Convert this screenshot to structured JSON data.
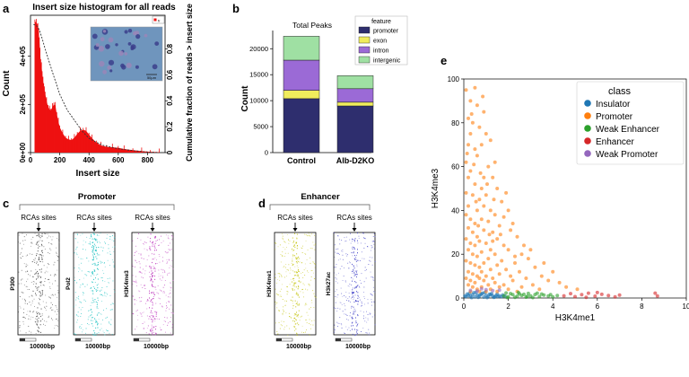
{
  "panel_labels": {
    "a": "a",
    "b": "b",
    "c": "c",
    "d": "d",
    "e": "e"
  },
  "colors": {
    "hist_fill": "#ee1111",
    "insulator": "#1f77b4",
    "promoter": "#ff7f0e",
    "weak_enhancer": "#2ca02c",
    "enhancer": "#d62728",
    "weak_promoter": "#9467bd",
    "bar_promoter": "#2e2e6e",
    "bar_exon": "#f0ec5c",
    "bar_intron": "#9b6ad6",
    "bar_intergenic": "#9fe0a3",
    "heat_p300": "#555555",
    "heat_pol2": "#26c4c4",
    "heat_h3k4me3": "#c040c0",
    "heat_h3k4me1": "#c8c81e",
    "heat_h3k27ac": "#5050cc"
  },
  "chart_data": [
    {
      "id": "a",
      "type": "area",
      "title": "Insert size histogram for all reads",
      "xlabel": "Insert size",
      "ylabel": "Count",
      "y2label": "Cumulative fraction of reads > insert size",
      "xticks": [
        "0",
        "200",
        "400",
        "600",
        "800"
      ],
      "yticks": [
        "0e+00",
        "2e+05",
        "4e+05"
      ],
      "y2ticks": [
        "0",
        "0.2",
        "0.4",
        "0.6",
        "0.8"
      ],
      "legend": "fr",
      "xlim": [
        0,
        920
      ],
      "ylim": [
        0,
        570000
      ],
      "hist": [
        [
          30,
          545000
        ],
        [
          40,
          540000
        ],
        [
          50,
          530000
        ],
        [
          55,
          500000
        ],
        [
          60,
          470000
        ],
        [
          65,
          420000
        ],
        [
          70,
          380000
        ],
        [
          75,
          360000
        ],
        [
          80,
          330000
        ],
        [
          85,
          300000
        ],
        [
          90,
          280000
        ],
        [
          95,
          260000
        ],
        [
          100,
          245000
        ],
        [
          110,
          215000
        ],
        [
          120,
          190000
        ],
        [
          130,
          180000
        ],
        [
          140,
          175000
        ],
        [
          150,
          190000
        ],
        [
          160,
          200000
        ],
        [
          170,
          195000
        ],
        [
          180,
          160000
        ],
        [
          190,
          130000
        ],
        [
          200,
          105000
        ],
        [
          220,
          80000
        ],
        [
          240,
          62000
        ],
        [
          260,
          55000
        ],
        [
          280,
          52000
        ],
        [
          300,
          62000
        ],
        [
          320,
          78000
        ],
        [
          340,
          90000
        ],
        [
          360,
          95000
        ],
        [
          380,
          90000
        ],
        [
          400,
          75000
        ],
        [
          420,
          60000
        ],
        [
          450,
          42000
        ],
        [
          480,
          30000
        ],
        [
          520,
          24000
        ],
        [
          560,
          22000
        ],
        [
          600,
          20000
        ],
        [
          640,
          15000
        ],
        [
          700,
          10000
        ],
        [
          760,
          6000
        ],
        [
          820,
          3500
        ],
        [
          880,
          2000
        ]
      ],
      "cumulative": [
        [
          20,
          0.99
        ],
        [
          40,
          0.98
        ],
        [
          60,
          0.95
        ],
        [
          80,
          0.88
        ],
        [
          100,
          0.8
        ],
        [
          150,
          0.62
        ],
        [
          200,
          0.45
        ],
        [
          250,
          0.33
        ],
        [
          300,
          0.25
        ],
        [
          350,
          0.17
        ],
        [
          400,
          0.11
        ],
        [
          450,
          0.08
        ],
        [
          500,
          0.055
        ],
        [
          600,
          0.03
        ],
        [
          700,
          0.015
        ],
        [
          800,
          0.005
        ],
        [
          880,
          0.0
        ]
      ],
      "inset": {
        "scale_bar": "50μm"
      }
    },
    {
      "id": "b",
      "type": "bar",
      "title": "Total Peaks",
      "ylabel": "Count",
      "categories": [
        "Control",
        "Alb-D2KO"
      ],
      "legend_title": "feature",
      "yticks": [
        0,
        5000,
        10000,
        15000,
        20000
      ],
      "ylim": [
        0,
        23500
      ],
      "series": [
        {
          "name": "promoter",
          "values": [
            10400,
            9000
          ]
        },
        {
          "name": "exon",
          "values": [
            1600,
            700
          ]
        },
        {
          "name": "intron",
          "values": [
            5800,
            2600
          ]
        },
        {
          "name": "intergenic",
          "values": [
            4600,
            2500
          ]
        }
      ]
    },
    {
      "id": "e",
      "type": "scatter",
      "xlabel": "H3K4me1",
      "ylabel": "H3K4me3",
      "legend_title": "class",
      "xlim": [
        0,
        10
      ],
      "ylim": [
        0,
        100
      ],
      "xticks": [
        0,
        2,
        4,
        6,
        8,
        10
      ],
      "yticks": [
        0,
        20,
        40,
        60,
        80,
        100
      ],
      "classes": [
        "Insulator",
        "Promoter",
        "Weak Enhancer",
        "Enhancer",
        "Weak Promoter"
      ],
      "points": {
        "Insulator": [
          [
            0.1,
            0.6
          ],
          [
            0.2,
            1.1
          ],
          [
            0.3,
            0.8
          ],
          [
            0.4,
            1.6
          ],
          [
            0.5,
            0.5
          ],
          [
            0.6,
            1.3
          ],
          [
            0.7,
            0.9
          ],
          [
            0.8,
            1.9
          ],
          [
            0.9,
            0.4
          ],
          [
            1.0,
            1.2
          ],
          [
            1.1,
            0.7
          ],
          [
            1.2,
            1.5
          ],
          [
            1.3,
            0.9
          ],
          [
            1.4,
            0.5
          ],
          [
            1.5,
            1.8
          ],
          [
            1.6,
            1.0
          ],
          [
            1.7,
            0.6
          ],
          [
            0.25,
            2.1
          ],
          [
            0.45,
            2.4
          ],
          [
            0.65,
            0.3
          ],
          [
            0.85,
            2.2
          ],
          [
            1.05,
            0.2
          ],
          [
            1.25,
            2.0
          ],
          [
            1.45,
            1.1
          ],
          [
            0.15,
            1.8
          ],
          [
            0.35,
            0.2
          ],
          [
            0.55,
            2.6
          ],
          [
            0.75,
            1.5
          ],
          [
            0.95,
            2.5
          ],
          [
            1.15,
            1.7
          ],
          [
            1.35,
            0.3
          ],
          [
            1.55,
            0.6
          ],
          [
            1.75,
            1.4
          ],
          [
            0.05,
            0.9
          ],
          [
            1.85,
            0.8
          ]
        ],
        "Promoter": [
          [
            0.1,
            95
          ],
          [
            0.3,
            90
          ],
          [
            0.6,
            88
          ],
          [
            0.5,
            96
          ],
          [
            0.2,
            82
          ],
          [
            0.4,
            80
          ],
          [
            0.9,
            85
          ],
          [
            0.3,
            75
          ],
          [
            1.0,
            75
          ],
          [
            0.7,
            78
          ],
          [
            0.2,
            70
          ],
          [
            0.8,
            70
          ],
          [
            0.5,
            68
          ],
          [
            1.2,
            72
          ],
          [
            0.1,
            62
          ],
          [
            0.6,
            65
          ],
          [
            1.1,
            60
          ],
          [
            0.3,
            58
          ],
          [
            0.9,
            55
          ],
          [
            1.4,
            62
          ],
          [
            0.2,
            55
          ],
          [
            0.5,
            52
          ],
          [
            0.8,
            50
          ],
          [
            1.3,
            55
          ],
          [
            0.1,
            48
          ],
          [
            0.4,
            47
          ],
          [
            0.7,
            45
          ],
          [
            1.0,
            47
          ],
          [
            1.5,
            50
          ],
          [
            1.9,
            48
          ],
          [
            0.2,
            42
          ],
          [
            0.6,
            40
          ],
          [
            0.9,
            42
          ],
          [
            1.2,
            40
          ],
          [
            1.7,
            44
          ],
          [
            0.1,
            38
          ],
          [
            0.3,
            36
          ],
          [
            0.5,
            34
          ],
          [
            0.8,
            36
          ],
          [
            1.1,
            35
          ],
          [
            1.4,
            38
          ],
          [
            2.0,
            40
          ],
          [
            0.2,
            32
          ],
          [
            0.4,
            30
          ],
          [
            0.6,
            28
          ],
          [
            0.9,
            31
          ],
          [
            1.3,
            30
          ],
          [
            1.6,
            33
          ],
          [
            2.2,
            34
          ],
          [
            0.1,
            27
          ],
          [
            0.3,
            25
          ],
          [
            0.5,
            24
          ],
          [
            0.7,
            26
          ],
          [
            1.0,
            25
          ],
          [
            1.2,
            22
          ],
          [
            1.5,
            27
          ],
          [
            1.8,
            24
          ],
          [
            2.4,
            28
          ],
          [
            0.2,
            22
          ],
          [
            0.4,
            20
          ],
          [
            0.6,
            19
          ],
          [
            0.8,
            21
          ],
          [
            1.1,
            18
          ],
          [
            1.4,
            20
          ],
          [
            1.7,
            17
          ],
          [
            2.0,
            22
          ],
          [
            2.6,
            20
          ],
          [
            0.1,
            17
          ],
          [
            0.3,
            16
          ],
          [
            0.5,
            15
          ],
          [
            0.7,
            14
          ],
          [
            0.9,
            16
          ],
          [
            1.2,
            13
          ],
          [
            1.5,
            15
          ],
          [
            1.9,
            13
          ],
          [
            2.3,
            16
          ],
          [
            2.9,
            18
          ],
          [
            0.2,
            12
          ],
          [
            0.4,
            11
          ],
          [
            0.6,
            10
          ],
          [
            0.8,
            12
          ],
          [
            1.0,
            10
          ],
          [
            1.3,
            9
          ],
          [
            1.6,
            11
          ],
          [
            2.1,
            10
          ],
          [
            2.5,
            12
          ],
          [
            3.2,
            14
          ],
          [
            0.1,
            9
          ],
          [
            0.3,
            8
          ],
          [
            0.5,
            7
          ],
          [
            0.7,
            9
          ],
          [
            0.9,
            8
          ],
          [
            1.1,
            6
          ],
          [
            1.4,
            7
          ],
          [
            1.8,
            6
          ],
          [
            2.2,
            8
          ],
          [
            2.8,
            9
          ],
          [
            3.5,
            10
          ],
          [
            0.2,
            6
          ],
          [
            0.4,
            5
          ],
          [
            0.6,
            4
          ],
          [
            0.8,
            5
          ],
          [
            1.2,
            4
          ],
          [
            1.6,
            5
          ],
          [
            2.0,
            4
          ],
          [
            2.6,
            5
          ],
          [
            3.1,
            6
          ],
          [
            3.8,
            8
          ],
          [
            4.3,
            7
          ],
          [
            0.3,
            3
          ],
          [
            0.7,
            3
          ],
          [
            1.0,
            3
          ],
          [
            1.5,
            3
          ],
          [
            2.4,
            3
          ],
          [
            3.4,
            4
          ],
          [
            4.6,
            5
          ],
          [
            5.1,
            4
          ],
          [
            1.3,
            26
          ],
          [
            0.45,
            61
          ],
          [
            0.75,
            57
          ],
          [
            1.05,
            52
          ],
          [
            1.65,
            29
          ],
          [
            2.1,
            31
          ],
          [
            2.7,
            24
          ],
          [
            3.0,
            22
          ],
          [
            3.6,
            16
          ],
          [
            4.0,
            12
          ],
          [
            0.55,
            44
          ],
          [
            0.35,
            84
          ],
          [
            1.35,
            45
          ],
          [
            1.8,
            37
          ],
          [
            0.65,
            33
          ],
          [
            1.15,
            29
          ],
          [
            2.3,
            19
          ],
          [
            0.15,
            66
          ],
          [
            0.85,
            92
          ]
        ],
        "Weak Enhancer": [
          [
            1.8,
            1.0
          ],
          [
            2.0,
            0.5
          ],
          [
            2.2,
            1.5
          ],
          [
            2.4,
            0.8
          ],
          [
            2.6,
            1.2
          ],
          [
            2.8,
            0.4
          ],
          [
            3.0,
            1.0
          ],
          [
            3.2,
            1.6
          ],
          [
            3.4,
            0.6
          ],
          [
            3.6,
            1.3
          ],
          [
            3.8,
            0.9
          ],
          [
            4.0,
            0.5
          ],
          [
            4.2,
            1.1
          ],
          [
            2.1,
            2.0
          ],
          [
            2.5,
            1.9
          ],
          [
            2.9,
            2.1
          ],
          [
            3.3,
            2.2
          ],
          [
            1.9,
            2.3
          ],
          [
            2.3,
            0.3
          ],
          [
            2.7,
            1.7
          ],
          [
            3.1,
            0.2
          ],
          [
            3.5,
            1.8
          ],
          [
            3.9,
            1.5
          ],
          [
            1.95,
            0.2
          ],
          [
            2.45,
            2.5
          ],
          [
            2.85,
            0.7
          ]
        ],
        "Enhancer": [
          [
            4.5,
            1.0
          ],
          [
            4.8,
            2.0
          ],
          [
            5.0,
            0.6
          ],
          [
            5.3,
            1.5
          ],
          [
            5.6,
            2.2
          ],
          [
            5.9,
            0.8
          ],
          [
            6.2,
            1.7
          ],
          [
            6.5,
            1.1
          ],
          [
            6.8,
            0.5
          ],
          [
            7.0,
            1.3
          ],
          [
            8.6,
            2.2
          ],
          [
            8.7,
            0.9
          ],
          [
            5.5,
            0.3
          ],
          [
            6.0,
            2.5
          ]
        ],
        "Weak Promoter": [
          [
            0.3,
            3.5
          ],
          [
            0.6,
            3.2
          ],
          [
            1.0,
            3.8
          ],
          [
            1.3,
            3.4
          ],
          [
            0.8,
            4.2
          ],
          [
            1.6,
            3.6
          ]
        ]
      }
    }
  ],
  "panel_c": {
    "title": "Promoter",
    "tracks": [
      {
        "label": "P300",
        "site": "RCAs sites"
      },
      {
        "label": "Pol2",
        "site": "RCAs sites"
      },
      {
        "label": "H3K4me3",
        "site": "RCAs sites"
      }
    ],
    "scale": "10000bp"
  },
  "panel_d": {
    "title": "Enhancer",
    "tracks": [
      {
        "label": "H3K4me1",
        "site": "RCAs sites"
      },
      {
        "label": "H3k27ac",
        "site": "RCAs sites"
      }
    ],
    "scale": "10000bp"
  }
}
